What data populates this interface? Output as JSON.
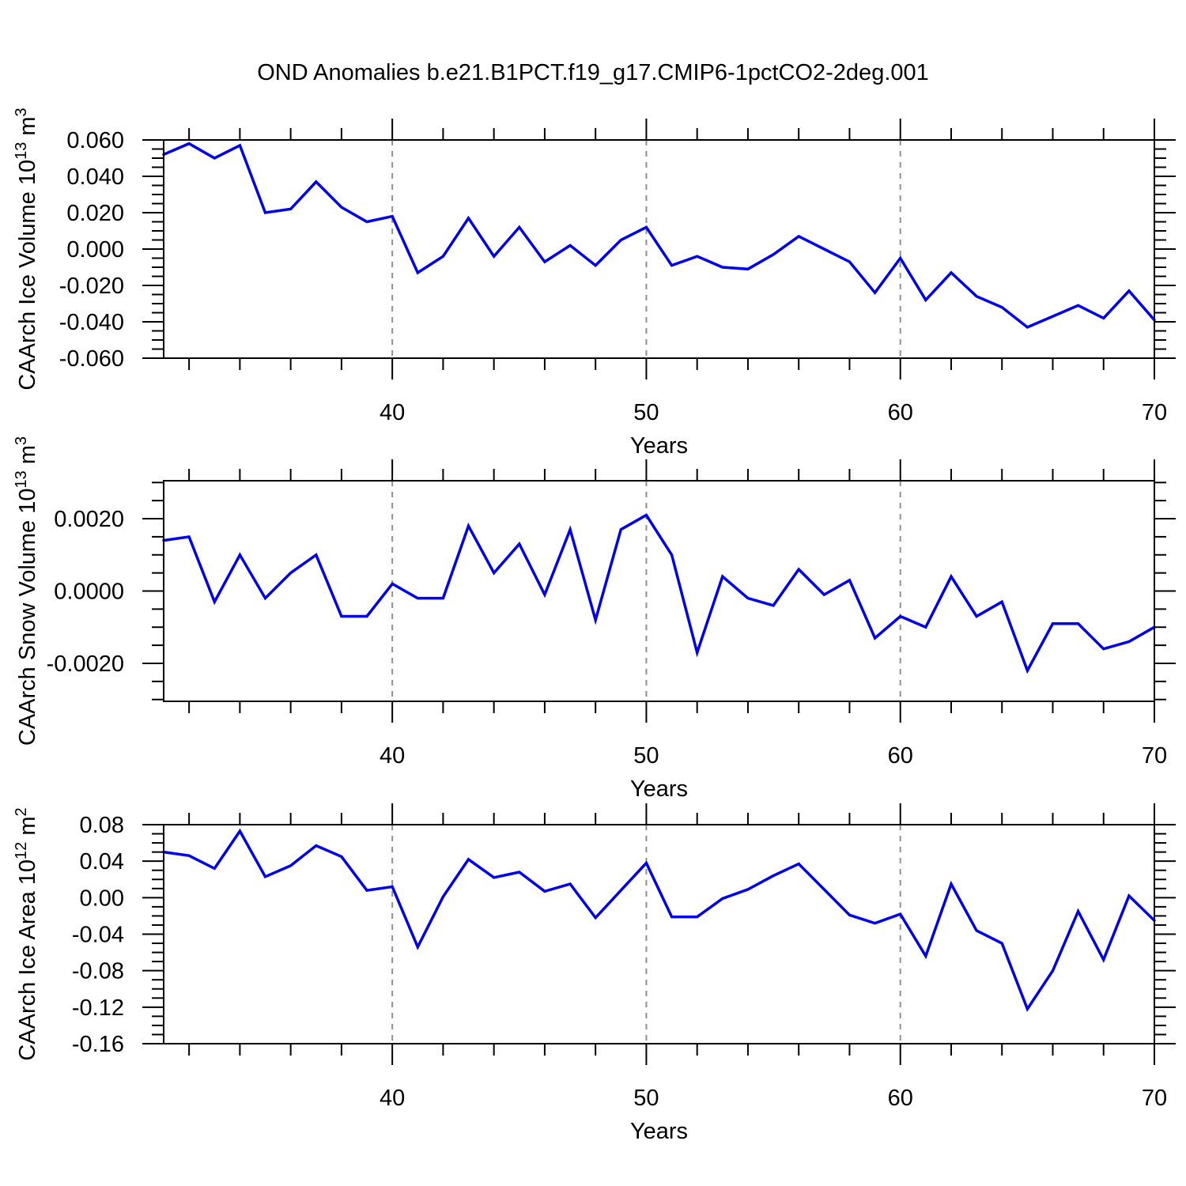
{
  "header": {
    "title": "OND Anomalies b.e21.B1PCT.f19_g17.CMIP6-1pctCO2-2deg.001"
  },
  "colors": {
    "line": "#0000ee",
    "axis": "#000000",
    "grid": "#909090",
    "text": "#000000",
    "background": "#ffffff"
  },
  "chart_data": [
    {
      "type": "line",
      "name": "ice-volume",
      "ylabel": "CAArch Ice Volume 10^13 m^3",
      "ylabel_parts": [
        {
          "text": "CAArch Ice Volume 10",
          "sup": false
        },
        {
          "text": "13",
          "sup": true
        },
        {
          "text": " m",
          "sup": false
        },
        {
          "text": "3",
          "sup": true
        }
      ],
      "xlabel": "Years",
      "xlim": [
        31,
        70
      ],
      "ylim": [
        -0.06,
        0.06
      ],
      "x": [
        31,
        32,
        33,
        34,
        35,
        36,
        37,
        38,
        39,
        40,
        41,
        42,
        43,
        44,
        45,
        46,
        47,
        48,
        49,
        50,
        51,
        52,
        53,
        54,
        55,
        56,
        57,
        58,
        59,
        60,
        61,
        62,
        63,
        64,
        65,
        66,
        67,
        68,
        69,
        70
      ],
      "values": [
        0.052,
        0.058,
        0.05,
        0.057,
        0.02,
        0.022,
        0.037,
        0.023,
        0.015,
        0.018,
        -0.013,
        -0.004,
        0.017,
        -0.004,
        0.012,
        -0.007,
        0.002,
        -0.009,
        0.005,
        0.012,
        -0.009,
        -0.004,
        -0.01,
        -0.011,
        -0.003,
        0.007,
        0.0,
        -0.007,
        -0.024,
        -0.005,
        -0.028,
        -0.013,
        -0.026,
        -0.032,
        -0.043,
        -0.037,
        -0.031,
        -0.038,
        -0.023,
        -0.039
      ],
      "yticks_major": [
        0.06,
        0.04,
        0.02,
        0.0,
        -0.02,
        -0.04,
        -0.06
      ],
      "ytick_labels": [
        "0.060",
        "0.040",
        "0.020",
        "0.000",
        "-0.020",
        "-0.040",
        "-0.060"
      ],
      "ytick_minor_step": 0.005,
      "xticks_labeled": [
        40,
        50,
        60,
        70
      ],
      "xtick_labels": [
        "40",
        "50",
        "60",
        "70"
      ],
      "xtick_minor_step": 2,
      "grid_x_dashed": [
        40,
        50,
        60
      ]
    },
    {
      "type": "line",
      "name": "snow-volume",
      "ylabel": "CAArch Snow Volume 10^13 m^3",
      "ylabel_parts": [
        {
          "text": "CAArch Snow Volume 10",
          "sup": false
        },
        {
          "text": "13",
          "sup": true
        },
        {
          "text": " m",
          "sup": false
        },
        {
          "text": "3",
          "sup": true
        }
      ],
      "xlabel": "Years",
      "xlim": [
        31,
        70
      ],
      "ylim": [
        -0.00305,
        0.00305
      ],
      "x": [
        31,
        32,
        33,
        34,
        35,
        36,
        37,
        38,
        39,
        40,
        41,
        42,
        43,
        44,
        45,
        46,
        47,
        48,
        49,
        50,
        51,
        52,
        53,
        54,
        55,
        56,
        57,
        58,
        59,
        60,
        61,
        62,
        63,
        64,
        65,
        66,
        67,
        68,
        69,
        70
      ],
      "values": [
        0.0014,
        0.0015,
        -0.0003,
        0.001,
        -0.0002,
        0.0005,
        0.001,
        -0.0007,
        -0.0007,
        0.0002,
        -0.0002,
        -0.0002,
        0.0018,
        0.0005,
        0.0013,
        -0.0001,
        0.0017,
        -0.0008,
        0.0017,
        0.0021,
        0.001,
        -0.0017,
        0.0004,
        -0.0002,
        -0.0004,
        0.0006,
        -0.0001,
        0.0003,
        -0.0013,
        -0.0007,
        -0.001,
        0.0004,
        -0.0007,
        -0.0003,
        -0.0022,
        -0.0009,
        -0.0009,
        -0.0016,
        -0.0014,
        -0.001
      ],
      "yticks_major": [
        0.002,
        0.0,
        -0.002
      ],
      "ytick_labels": [
        "0.0020",
        "0.0000",
        "-0.0020"
      ],
      "ytick_minor_step": 0.0005,
      "xticks_labeled": [
        40,
        50,
        60,
        70
      ],
      "xtick_labels": [
        "40",
        "50",
        "60",
        "70"
      ],
      "xtick_minor_step": 2,
      "grid_x_dashed": [
        40,
        50,
        60
      ]
    },
    {
      "type": "line",
      "name": "ice-area",
      "ylabel": "CAArch Ice Area 10^12 m^2",
      "ylabel_parts": [
        {
          "text": "CAArch Ice Area 10",
          "sup": false
        },
        {
          "text": "12",
          "sup": true
        },
        {
          "text": " m",
          "sup": false
        },
        {
          "text": "2",
          "sup": true
        }
      ],
      "xlabel": "Years",
      "xlim": [
        31,
        70
      ],
      "ylim": [
        -0.16,
        0.08
      ],
      "x": [
        31,
        32,
        33,
        34,
        35,
        36,
        37,
        38,
        39,
        40,
        41,
        42,
        43,
        44,
        45,
        46,
        47,
        48,
        49,
        50,
        51,
        52,
        53,
        54,
        55,
        56,
        57,
        58,
        59,
        60,
        61,
        62,
        63,
        64,
        65,
        66,
        67,
        68,
        69,
        70
      ],
      "values": [
        0.05,
        0.046,
        0.032,
        0.073,
        0.023,
        0.035,
        0.057,
        0.045,
        0.008,
        0.012,
        -0.054,
        0.001,
        0.042,
        0.022,
        0.028,
        0.007,
        0.015,
        -0.022,
        0.008,
        0.038,
        -0.021,
        -0.021,
        -0.001,
        0.009,
        0.024,
        0.037,
        0.009,
        -0.019,
        -0.028,
        -0.018,
        -0.064,
        0.015,
        -0.036,
        -0.05,
        -0.122,
        -0.08,
        -0.015,
        -0.068,
        0.002,
        -0.025
      ],
      "yticks_major": [
        0.08,
        0.04,
        0.0,
        -0.04,
        -0.08,
        -0.12,
        -0.16
      ],
      "ytick_labels": [
        "0.08",
        "0.04",
        "0.00",
        "-0.04",
        "-0.08",
        "-0.12",
        "-0.16"
      ],
      "ytick_minor_step": 0.01,
      "xticks_labeled": [
        40,
        50,
        60,
        70
      ],
      "xtick_labels": [
        "40",
        "50",
        "60",
        "70"
      ],
      "xtick_minor_step": 2,
      "grid_x_dashed": [
        40,
        50,
        60
      ]
    }
  ]
}
